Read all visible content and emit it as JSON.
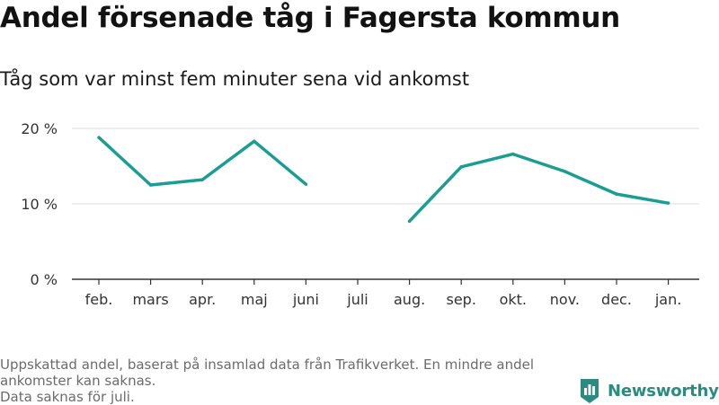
{
  "header": {
    "title": "Andel försenade tåg i Fagersta kommun",
    "subtitle": "Tåg som var minst fem minuter sena vid ankomst"
  },
  "footnote": {
    "line1": "Uppskattad andel, baserat på insamlad data från Trafikverket. En mindre andel ankomster kan saknas.",
    "line2": "Data saknas för juli."
  },
  "brand": {
    "name": "Newsworthy",
    "icon": "newsworthy-logo-icon"
  },
  "colors": {
    "line": "#1a9e93",
    "grid": "#dcdcdc",
    "axis": "#333333",
    "brand": "#2b8b80"
  },
  "chart_data": {
    "type": "line",
    "title": "Andel försenade tåg i Fagersta kommun",
    "subtitle": "Tåg som var minst fem minuter sena vid ankomst",
    "categories": [
      "feb.",
      "mars",
      "apr.",
      "maj",
      "juni",
      "juli",
      "aug.",
      "sep.",
      "okt.",
      "nov.",
      "dec.",
      "jan."
    ],
    "series": [
      {
        "values": [
          18.8,
          12.5,
          13.2,
          18.3,
          12.6,
          null,
          7.7,
          14.9,
          16.6,
          14.3,
          11.3,
          10.1
        ]
      }
    ],
    "yticks": [
      0,
      10,
      20
    ],
    "ytick_labels": [
      "0 %",
      "10 %",
      "20 %"
    ],
    "ylim": [
      0,
      20
    ],
    "xlabel": "",
    "ylabel": "",
    "grid": true,
    "legend": "none"
  }
}
